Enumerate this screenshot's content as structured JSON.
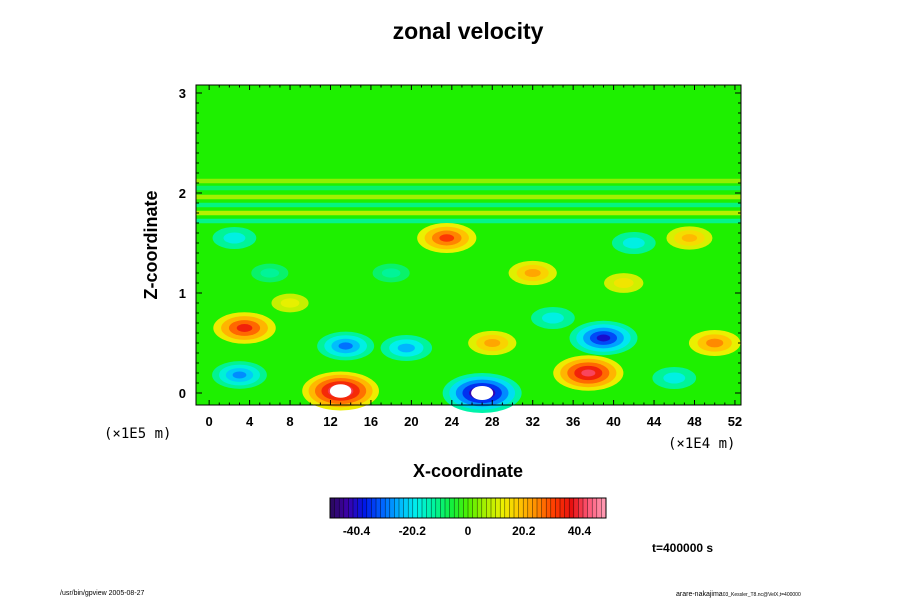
{
  "chart_data": {
    "type": "heatmap",
    "title": "zonal velocity",
    "xlabel": "X-coordinate",
    "ylabel": "Z-coordinate",
    "x_scale_note": "(×1E4 m)",
    "y_scale_note": "(×1E5 m)",
    "xlim": [
      -1.3,
      52.6
    ],
    "ylim": [
      -0.12,
      3.08
    ],
    "x_ticks": [
      "0",
      "4",
      "8",
      "12",
      "16",
      "20",
      "24",
      "28",
      "32",
      "36",
      "40",
      "44",
      "48",
      "52"
    ],
    "y_ticks": [
      "0",
      "1",
      "2",
      "3"
    ],
    "x_tick_values": [
      0,
      4,
      8,
      12,
      16,
      20,
      24,
      28,
      32,
      36,
      40,
      44,
      48,
      52
    ],
    "y_tick_values": [
      0,
      1,
      2,
      3
    ],
    "value_range": [
      -50,
      50
    ],
    "colorbar": {
      "ticks": [
        "-40.4",
        "-20.2",
        "0",
        "20.2",
        "40.4"
      ],
      "tick_values": [
        -40.4,
        -20.2,
        0,
        20.2,
        40.4
      ],
      "colors": [
        "#2a0a5a",
        "#3c00a8",
        "#0018e8",
        "#0060ff",
        "#00b4ff",
        "#00f0ec",
        "#00f4a0",
        "#10f040",
        "#50f000",
        "#a8f000",
        "#ecf000",
        "#ffc400",
        "#ff8a00",
        "#ff3c00",
        "#e81010",
        "#ff5a7a",
        "#ffa0b8"
      ]
    },
    "features": [
      {
        "x": 13.0,
        "z": 0.02,
        "value": 48
      },
      {
        "x": 27.0,
        "z": 0.0,
        "value": -50
      },
      {
        "x": 37.5,
        "z": 0.2,
        "value": 42
      },
      {
        "x": 39.0,
        "z": 0.55,
        "value": -40
      },
      {
        "x": 13.5,
        "z": 0.47,
        "value": -30
      },
      {
        "x": 3.5,
        "z": 0.65,
        "value": 35
      },
      {
        "x": 3.0,
        "z": 0.18,
        "value": -28
      },
      {
        "x": 19.5,
        "z": 0.45,
        "value": -25
      },
      {
        "x": 28.0,
        "z": 0.5,
        "value": 22
      },
      {
        "x": 34.0,
        "z": 0.75,
        "value": -18
      },
      {
        "x": 50.0,
        "z": 0.5,
        "value": 25
      },
      {
        "x": 46.0,
        "z": 0.15,
        "value": -18
      },
      {
        "x": 32.0,
        "z": 1.2,
        "value": 22
      },
      {
        "x": 23.5,
        "z": 1.55,
        "value": 32
      },
      {
        "x": 18.0,
        "z": 1.2,
        "value": -12
      },
      {
        "x": 42.0,
        "z": 1.5,
        "value": -18
      },
      {
        "x": 47.5,
        "z": 1.55,
        "value": 20
      },
      {
        "x": 6.0,
        "z": 1.2,
        "value": -12
      },
      {
        "x": 8.0,
        "z": 0.9,
        "value": 12
      },
      {
        "x": 41.0,
        "z": 1.1,
        "value": 14
      },
      {
        "x": 2.5,
        "z": 1.55,
        "value": -18
      }
    ],
    "bands": [
      {
        "z": 1.72,
        "value": -13
      },
      {
        "z": 1.8,
        "value": 10
      },
      {
        "z": 1.88,
        "value": -12
      },
      {
        "z": 1.96,
        "value": 8
      },
      {
        "z": 2.05,
        "value": -10
      },
      {
        "z": 2.12,
        "value": 6
      }
    ]
  },
  "footer": {
    "left": "/usr/bin/gpview 2005-08-27",
    "right_main": "arare-nakajima",
    "right_small": "03_Kessler_T8.nc@VelX,t=400000"
  },
  "time_label": "t=400000 s"
}
